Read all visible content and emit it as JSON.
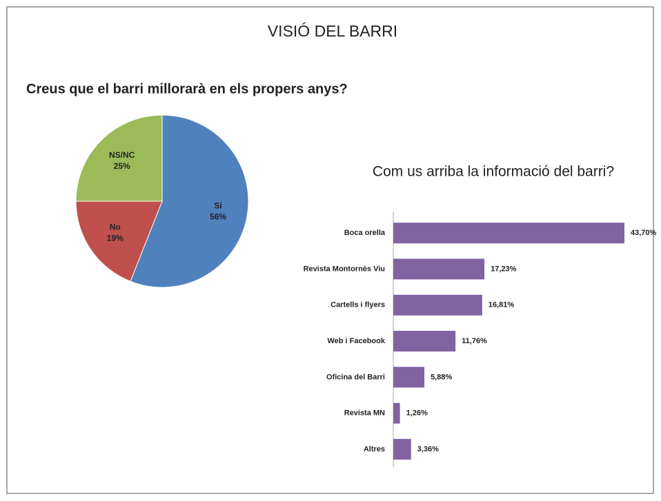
{
  "page_title": "VISIÓ DEL BARRI",
  "chart_data": [
    {
      "type": "pie",
      "title": "Creus que el barri millorarà en els propers anys?",
      "categories": [
        "Sí",
        "No",
        "NS/NC"
      ],
      "values": [
        56,
        19,
        25
      ],
      "value_labels": [
        "56%",
        "19%",
        "25%"
      ],
      "colors": [
        "#4f81bd",
        "#c0504d",
        "#9bbb59"
      ]
    },
    {
      "type": "bar",
      "orientation": "horizontal",
      "title": "Com us arriba la informació del barri?",
      "categories": [
        "Boca orella",
        "Revista Montornès Viu",
        "Cartells i flyers",
        "Web i Facebook",
        "Oficina del Barri",
        "Revista MN",
        "Altres"
      ],
      "values": [
        43.7,
        17.23,
        16.81,
        11.76,
        5.88,
        1.26,
        3.36
      ],
      "value_labels": [
        "43,70%",
        "17,23%",
        "16,81%",
        "11,76%",
        "5,88%",
        "1,26%",
        "3,36%"
      ],
      "color": "#8064a2"
    }
  ]
}
